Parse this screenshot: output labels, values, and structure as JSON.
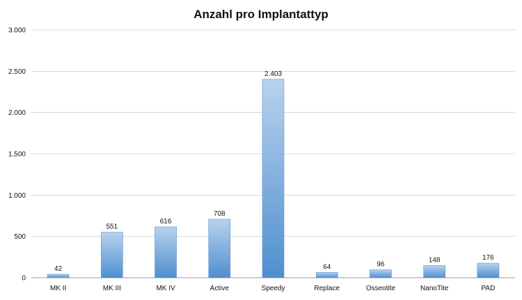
{
  "chart_data": {
    "type": "bar",
    "title": "Anzahl pro Implantattyp",
    "xlabel": "",
    "ylabel": "",
    "categories": [
      "MK II",
      "MK III",
      "MK IV",
      "Active",
      "Speedy",
      "Replace",
      "Osseotite",
      "NanoTite",
      "PAD"
    ],
    "values": [
      42,
      551,
      616,
      708,
      2403,
      64,
      96,
      148,
      176
    ],
    "value_labels": [
      "42",
      "551",
      "616",
      "708",
      "2.403",
      "64",
      "96",
      "148",
      "176"
    ],
    "ylim": [
      0,
      3000
    ],
    "yticks": [
      0,
      500,
      1000,
      1500,
      2000,
      2500,
      3000
    ],
    "ytick_labels": [
      "0",
      "500",
      "1.000",
      "1.500",
      "2.000",
      "2.500",
      "3.000"
    ],
    "grid": true,
    "legend": "none",
    "colors": {
      "bar_top": "#b8d2ee",
      "bar_bottom": "#4f8fcf",
      "bar_edge": "#5b93cc",
      "grid": "#d8d8d8",
      "axis": "#9a9a9a",
      "text": "#111111"
    }
  }
}
